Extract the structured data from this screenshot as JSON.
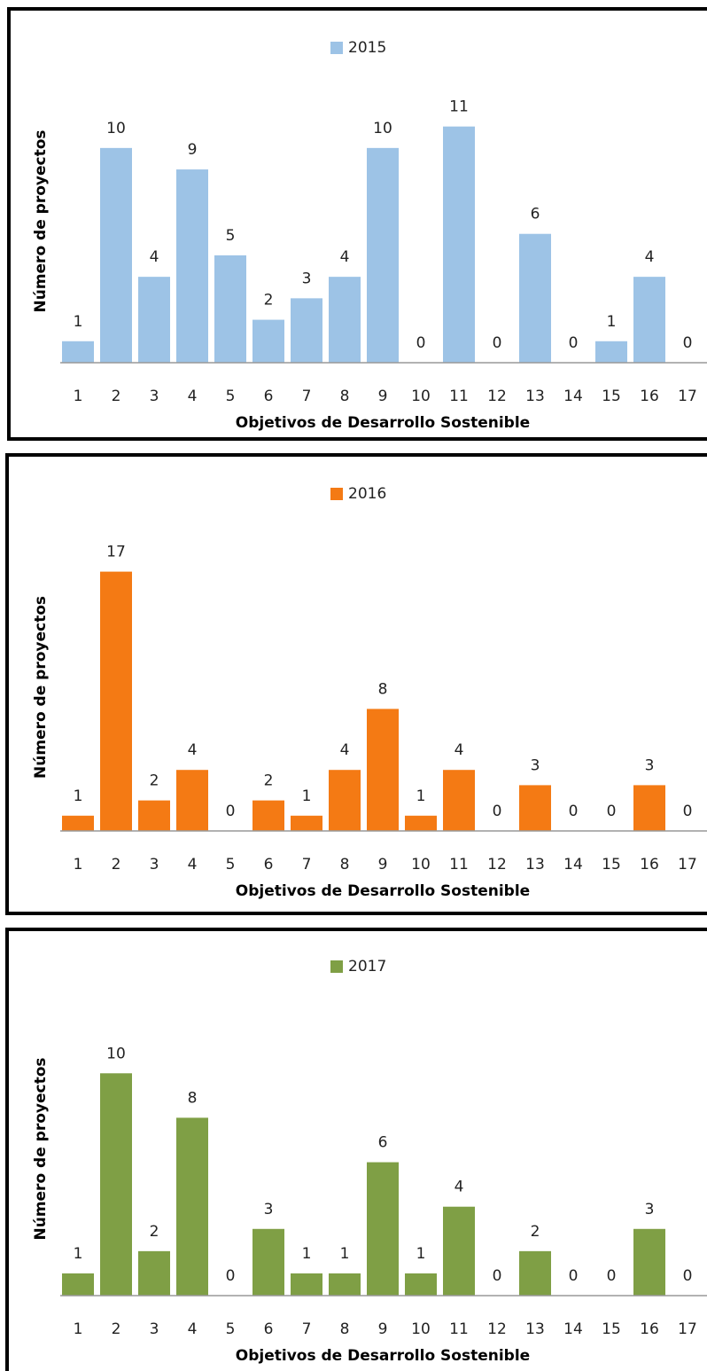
{
  "chart_data": [
    {
      "type": "bar",
      "x_label": "Objetivos de Desarrollo Sostenible",
      "y_label": "Número de proyectos",
      "categories": [
        "1",
        "2",
        "3",
        "4",
        "5",
        "6",
        "7",
        "8",
        "9",
        "10",
        "11",
        "12",
        "13",
        "14",
        "15",
        "16",
        "17"
      ],
      "series": [
        {
          "name": "2015",
          "color": "#9dc3e6",
          "values": [
            1,
            10,
            4,
            9,
            5,
            2,
            3,
            4,
            10,
            0,
            11,
            0,
            6,
            0,
            1,
            4,
            0
          ]
        }
      ],
      "ylim": [
        0,
        14
      ],
      "legend": "top"
    },
    {
      "type": "bar",
      "x_label": "Objetivos de Desarrollo Sostenible",
      "y_label": "Número de proyectos",
      "categories": [
        "1",
        "2",
        "3",
        "4",
        "5",
        "6",
        "7",
        "8",
        "9",
        "10",
        "11",
        "12",
        "13",
        "14",
        "15",
        "16",
        "17"
      ],
      "series": [
        {
          "name": "2016",
          "color": "#f47a14",
          "values": [
            1,
            17,
            2,
            4,
            0,
            2,
            1,
            4,
            8,
            1,
            4,
            0,
            3,
            0,
            0,
            3,
            0
          ]
        }
      ],
      "ylim": [
        0,
        20
      ],
      "legend": "top"
    },
    {
      "type": "bar",
      "x_label": "Objetivos de Desarrollo Sostenible",
      "y_label": "Número de proyectos",
      "categories": [
        "1",
        "2",
        "3",
        "4",
        "5",
        "6",
        "7",
        "8",
        "9",
        "10",
        "11",
        "12",
        "13",
        "14",
        "15",
        "16",
        "17"
      ],
      "series": [
        {
          "name": "2017",
          "color": "#7f9f45",
          "values": [
            1,
            10,
            2,
            8,
            0,
            3,
            1,
            1,
            6,
            1,
            4,
            0,
            2,
            0,
            0,
            3,
            0
          ]
        }
      ],
      "ylim": [
        0,
        14
      ],
      "legend": "top"
    }
  ]
}
